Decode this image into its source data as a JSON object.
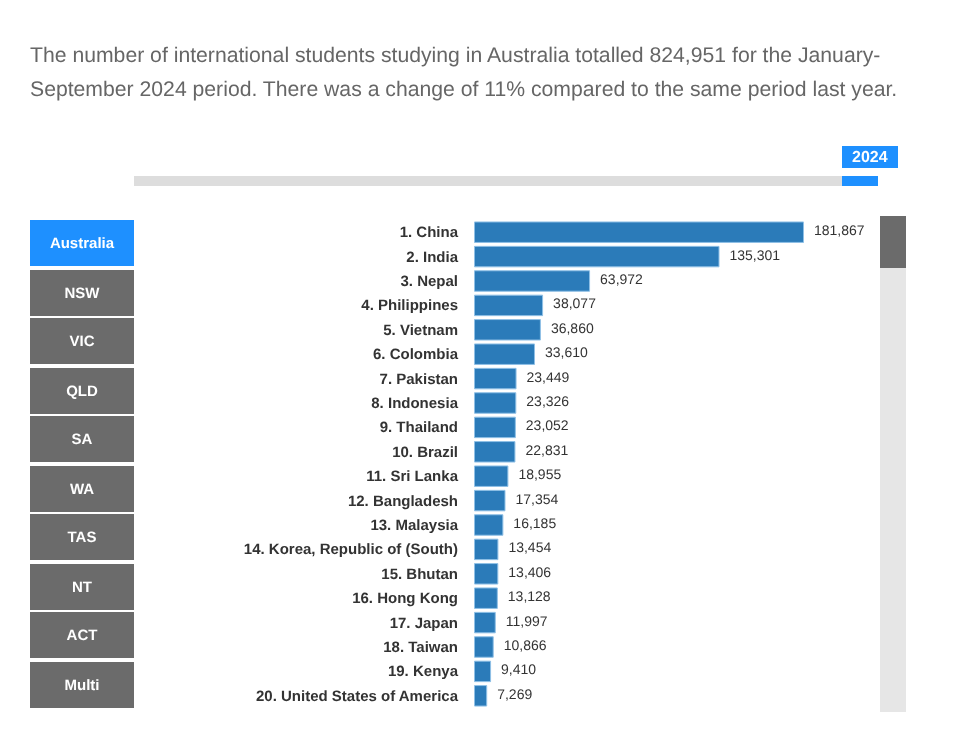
{
  "chart_data": {
    "type": "bar",
    "orientation": "horizontal",
    "title": "The number of international students studying in Australia totalled 824,951 for the January-September 2024 period. There was a change of 11% compared to the same period last year.",
    "annotations": [
      "2024",
      "Australia",
      "NSW",
      "VIC",
      "QLD",
      "SA",
      "WA",
      "TAS",
      "NT",
      "ACT",
      "Multi"
    ],
    "categories": [
      "1. China",
      "2. India",
      "3. Nepal",
      "4. Philippines",
      "5. Vietnam",
      "6. Colombia",
      "7. Pakistan",
      "8. Indonesia",
      "9. Thailand",
      "10. Brazil",
      "11. Sri Lanka",
      "12. Bangladesh",
      "13. Malaysia",
      "14. Korea, Republic of (South)",
      "15. Bhutan",
      "16. Hong Kong",
      "17. Japan",
      "18. Taiwan",
      "19. Kenya",
      "20. United States of America"
    ],
    "values": [
      181867,
      135301,
      63972,
      38077,
      36860,
      33610,
      23449,
      23326,
      23052,
      22831,
      18955,
      17354,
      16185,
      13454,
      13406,
      13128,
      11997,
      10866,
      9410,
      7269
    ],
    "value_labels": [
      "181,867",
      "135,301",
      "63,972",
      "38,077",
      "36,860",
      "33,610",
      "23,449",
      "23,326",
      "23,052",
      "22,831",
      "18,955",
      "17,354",
      "16,185",
      "13,454",
      "13,406",
      "13,128",
      "11,997",
      "10,866",
      "9,410",
      "7,269"
    ],
    "color": "#2b7bb9",
    "grid": false
  }
}
